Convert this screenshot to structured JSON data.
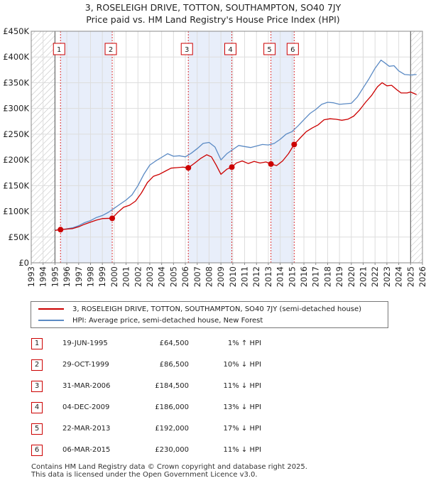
{
  "title_line1": "3, ROSELEIGH DRIVE, TOTTON, SOUTHAMPTON, SO40 7JY",
  "title_line2": "Price paid vs. HM Land Registry's House Price Index (HPI)",
  "chart_data": {
    "type": "line",
    "title": "3, ROSELEIGH DRIVE, TOTTON, SOUTHAMPTON, SO40 7JY — Price paid vs. HM Land Registry's House Price Index (HPI)",
    "xlim": [
      1993,
      2026
    ],
    "ylim": [
      0,
      450000
    ],
    "x_ticks": [
      "1993",
      "1994",
      "1995",
      "1996",
      "1997",
      "1998",
      "1999",
      "2000",
      "2001",
      "2002",
      "2003",
      "2004",
      "2005",
      "2006",
      "2007",
      "2008",
      "2009",
      "2010",
      "2011",
      "2012",
      "2013",
      "2014",
      "2015",
      "2016",
      "2017",
      "2018",
      "2019",
      "2020",
      "2021",
      "2022",
      "2023",
      "2024",
      "2025",
      "2026"
    ],
    "y_ticks": [
      {
        "value": 0,
        "label": "£0"
      },
      {
        "value": 50000,
        "label": "£50K"
      },
      {
        "value": 100000,
        "label": "£100K"
      },
      {
        "value": 150000,
        "label": "£150K"
      },
      {
        "value": 200000,
        "label": "£200K"
      },
      {
        "value": 250000,
        "label": "£250K"
      },
      {
        "value": 300000,
        "label": "£300K"
      },
      {
        "value": 350000,
        "label": "£350K"
      },
      {
        "value": 400000,
        "label": "£400K"
      },
      {
        "value": 450000,
        "label": "£450K"
      }
    ],
    "hatched_before": 1995.0,
    "hatched_after": 2025.0,
    "shaded_periods": [
      [
        1995.47,
        1999.83
      ],
      [
        2006.25,
        2009.92
      ],
      [
        2013.22,
        2015.18
      ]
    ],
    "series": [
      {
        "name": "3, ROSELEIGH DRIVE, TOTTON, SOUTHAMPTON, SO40 7JY (semi-detached house)",
        "color": "#cc0000",
        "points": [
          [
            1995.0,
            63000
          ],
          [
            1995.47,
            64500
          ],
          [
            1996.0,
            65500
          ],
          [
            1996.5,
            66500
          ],
          [
            1997.0,
            70000
          ],
          [
            1997.5,
            75000
          ],
          [
            1998.0,
            79000
          ],
          [
            1998.5,
            83000
          ],
          [
            1999.0,
            86000
          ],
          [
            1999.83,
            86500
          ],
          [
            2000.3,
            98000
          ],
          [
            2000.8,
            108000
          ],
          [
            2001.3,
            112000
          ],
          [
            2001.8,
            120000
          ],
          [
            2002.3,
            136000
          ],
          [
            2002.8,
            156000
          ],
          [
            2003.3,
            168000
          ],
          [
            2003.8,
            172000
          ],
          [
            2004.3,
            178000
          ],
          [
            2004.8,
            184000
          ],
          [
            2005.3,
            185000
          ],
          [
            2005.8,
            186000
          ],
          [
            2006.25,
            184500
          ],
          [
            2006.8,
            194000
          ],
          [
            2007.3,
            203000
          ],
          [
            2007.8,
            210000
          ],
          [
            2008.2,
            206000
          ],
          [
            2008.6,
            190000
          ],
          [
            2009.0,
            172000
          ],
          [
            2009.5,
            182000
          ],
          [
            2009.92,
            186000
          ],
          [
            2010.3,
            194000
          ],
          [
            2010.8,
            198000
          ],
          [
            2011.3,
            193000
          ],
          [
            2011.8,
            197000
          ],
          [
            2012.3,
            194000
          ],
          [
            2012.8,
            196000
          ],
          [
            2013.22,
            192000
          ],
          [
            2013.7,
            189000
          ],
          [
            2014.2,
            198000
          ],
          [
            2014.7,
            212000
          ],
          [
            2015.18,
            230000
          ],
          [
            2015.7,
            243000
          ],
          [
            2016.2,
            255000
          ],
          [
            2016.7,
            262000
          ],
          [
            2017.2,
            268000
          ],
          [
            2017.7,
            278000
          ],
          [
            2018.2,
            280000
          ],
          [
            2018.7,
            279000
          ],
          [
            2019.2,
            277000
          ],
          [
            2019.7,
            279000
          ],
          [
            2020.2,
            285000
          ],
          [
            2020.7,
            297000
          ],
          [
            2021.2,
            312000
          ],
          [
            2021.7,
            325000
          ],
          [
            2022.2,
            342000
          ],
          [
            2022.6,
            350000
          ],
          [
            2023.0,
            344000
          ],
          [
            2023.4,
            345000
          ],
          [
            2023.8,
            337000
          ],
          [
            2024.2,
            330000
          ],
          [
            2024.7,
            330000
          ],
          [
            2025.0,
            332000
          ],
          [
            2025.5,
            327000
          ]
        ]
      },
      {
        "name": "HPI: Average price, semi-detached house, New Forest",
        "color": "#5b8ac4",
        "points": [
          [
            1995.0,
            63500
          ],
          [
            1995.5,
            64500
          ],
          [
            1996.0,
            66000
          ],
          [
            1996.5,
            68000
          ],
          [
            1997.0,
            72000
          ],
          [
            1997.5,
            78000
          ],
          [
            1998.0,
            82000
          ],
          [
            1998.5,
            88000
          ],
          [
            1999.0,
            92000
          ],
          [
            1999.5,
            98000
          ],
          [
            2000.0,
            106000
          ],
          [
            2000.5,
            114000
          ],
          [
            2001.0,
            122000
          ],
          [
            2001.5,
            132000
          ],
          [
            2002.0,
            150000
          ],
          [
            2002.5,
            172000
          ],
          [
            2003.0,
            190000
          ],
          [
            2003.5,
            198000
          ],
          [
            2004.0,
            205000
          ],
          [
            2004.5,
            212000
          ],
          [
            2005.0,
            207000
          ],
          [
            2005.5,
            208000
          ],
          [
            2006.0,
            206000
          ],
          [
            2006.5,
            213000
          ],
          [
            2007.0,
            222000
          ],
          [
            2007.5,
            232000
          ],
          [
            2008.0,
            234000
          ],
          [
            2008.5,
            225000
          ],
          [
            2009.0,
            200000
          ],
          [
            2009.5,
            212000
          ],
          [
            2010.0,
            220000
          ],
          [
            2010.5,
            228000
          ],
          [
            2011.0,
            226000
          ],
          [
            2011.5,
            224000
          ],
          [
            2012.0,
            227000
          ],
          [
            2012.5,
            230000
          ],
          [
            2013.0,
            229000
          ],
          [
            2013.5,
            232000
          ],
          [
            2014.0,
            240000
          ],
          [
            2014.5,
            250000
          ],
          [
            2015.0,
            255000
          ],
          [
            2015.5,
            266000
          ],
          [
            2016.0,
            278000
          ],
          [
            2016.5,
            290000
          ],
          [
            2017.0,
            298000
          ],
          [
            2017.5,
            308000
          ],
          [
            2018.0,
            312000
          ],
          [
            2018.5,
            311000
          ],
          [
            2019.0,
            308000
          ],
          [
            2019.5,
            309000
          ],
          [
            2020.0,
            310000
          ],
          [
            2020.5,
            322000
          ],
          [
            2021.0,
            340000
          ],
          [
            2021.5,
            358000
          ],
          [
            2022.0,
            378000
          ],
          [
            2022.5,
            394000
          ],
          [
            2022.8,
            389000
          ],
          [
            2023.2,
            382000
          ],
          [
            2023.6,
            383000
          ],
          [
            2024.0,
            373000
          ],
          [
            2024.5,
            366000
          ],
          [
            2025.0,
            365000
          ],
          [
            2025.5,
            366000
          ]
        ]
      }
    ],
    "sales": [
      {
        "num": "1",
        "date": "19-JUN-1995",
        "price": "£64,500",
        "hpi": "1% ↑ HPI",
        "x": 1995.47,
        "y": 64500
      },
      {
        "num": "2",
        "date": "29-OCT-1999",
        "price": "£86,500",
        "hpi": "10% ↓ HPI",
        "x": 1999.83,
        "y": 86500
      },
      {
        "num": "3",
        "date": "31-MAR-2006",
        "price": "£184,500",
        "hpi": "11% ↓ HPI",
        "x": 2006.25,
        "y": 184500
      },
      {
        "num": "4",
        "date": "04-DEC-2009",
        "price": "£186,000",
        "hpi": "13% ↓ HPI",
        "x": 2009.92,
        "y": 186000
      },
      {
        "num": "5",
        "date": "22-MAR-2013",
        "price": "£192,000",
        "hpi": "17% ↓ HPI",
        "x": 2013.22,
        "y": 192000
      },
      {
        "num": "6",
        "date": "06-MAR-2015",
        "price": "£230,000",
        "hpi": "11% ↓ HPI",
        "x": 2015.18,
        "y": 230000
      }
    ]
  },
  "legend": {
    "property_label": "3, ROSELEIGH DRIVE, TOTTON, SOUTHAMPTON, SO40 7JY (semi-detached house)",
    "hpi_label": "HPI: Average price, semi-detached house, New Forest"
  },
  "footer": {
    "line1": "Contains HM Land Registry data © Crown copyright and database right 2025.",
    "line2": "This data is licensed under the Open Government Licence v3.0."
  }
}
